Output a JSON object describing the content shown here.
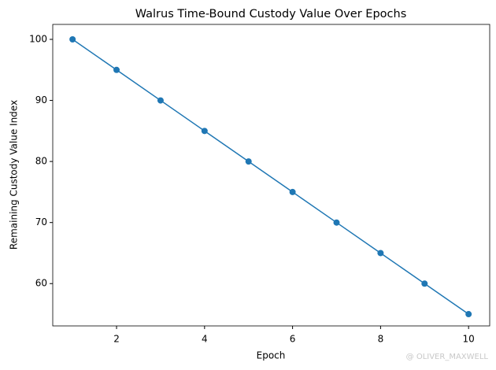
{
  "chart_data": {
    "type": "line",
    "title": "Walrus Time-Bound Custody Value Over Epochs",
    "x_label": "Epoch",
    "y_label": "Remaining Custody Value Index",
    "x": [
      1,
      2,
      3,
      4,
      5,
      6,
      7,
      8,
      9,
      10
    ],
    "series": [
      {
        "color": "#1f77b4",
        "values": [
          100,
          95,
          90,
          85,
          80,
          75,
          70,
          65,
          60,
          55
        ]
      }
    ],
    "xlim": [
      0.55,
      10.48
    ],
    "xticks": [
      2,
      4,
      6,
      8,
      10
    ],
    "ylim": [
      53.07,
      102.45
    ],
    "yticks": [
      60,
      70,
      80,
      90,
      100
    ],
    "grid": false,
    "watermark": "@ OLIVER_MAXWELL"
  }
}
